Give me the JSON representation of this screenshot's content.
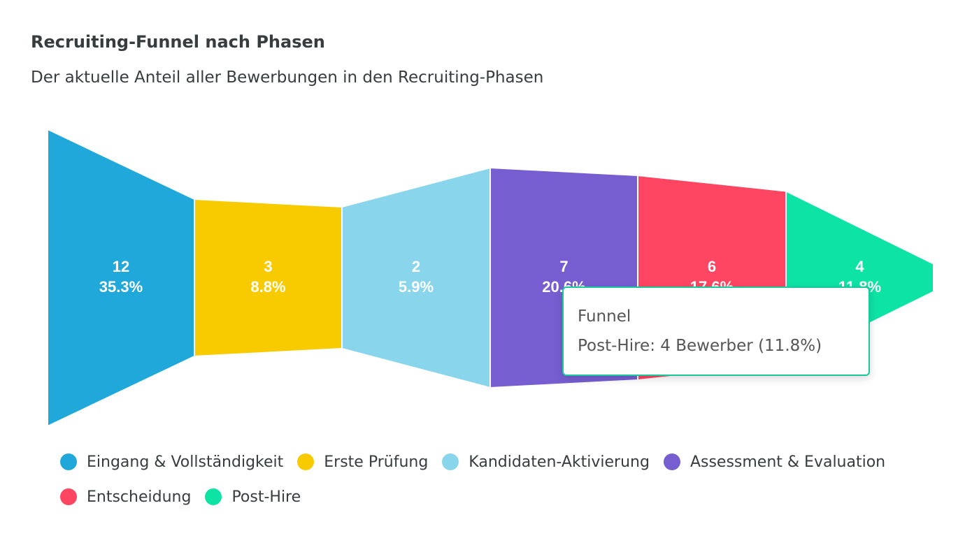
{
  "chart_data": {
    "type": "funnel",
    "title": "Recruiting-Funnel nach Phasen",
    "subtitle": "Der aktuelle Anteil aller Bewerbungen in den Recruiting-Phasen",
    "categories": [
      "Eingang & Vollständigkeit",
      "Erste Prüfung",
      "Kandidaten-Aktivierung",
      "Assessment & Evaluation",
      "Entscheidung",
      "Post-Hire"
    ],
    "values": [
      12,
      3,
      2,
      7,
      6,
      4
    ],
    "percent_labels": [
      "35.3%",
      "8.8%",
      "5.9%",
      "20.6%",
      "17.6%",
      "11.8%"
    ],
    "colors": [
      "#1fa8d9",
      "#f8cb00",
      "#89d6ec",
      "#765ed1",
      "#fe4561",
      "#0ee3a6"
    ],
    "legend_position": "bottom",
    "tooltip": {
      "title": "Funnel",
      "text": "Post-Hire: 4 Bewerber (11.8%)"
    }
  }
}
